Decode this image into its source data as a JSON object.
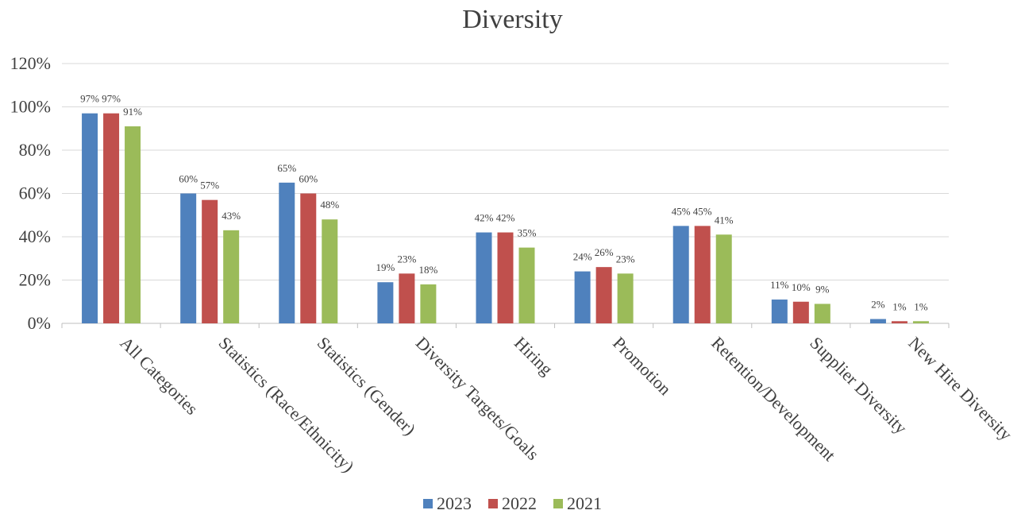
{
  "chart_data": {
    "type": "bar",
    "title": "Diversity",
    "xlabel": "",
    "ylabel": "",
    "ylim": [
      0,
      120
    ],
    "yticks": [
      0,
      20,
      40,
      60,
      80,
      100,
      120
    ],
    "ytick_labels": [
      "0%",
      "20%",
      "40%",
      "60%",
      "80%",
      "100%",
      "120%"
    ],
    "grid": true,
    "legend_position": "bottom",
    "categories": [
      "All Categories",
      "Statistics (Race/Ethnicity)",
      "Statistics (Gender)",
      "Diversity Targets/Goals",
      "Hiring",
      "Promotion",
      "Retention/Development",
      "Supplier Diversity",
      "New Hire Diversity"
    ],
    "series": [
      {
        "name": "2023",
        "color": "#4f81bd",
        "values": [
          97,
          60,
          65,
          19,
          42,
          24,
          45,
          11,
          2
        ],
        "labels": [
          "97%",
          "60%",
          "65%",
          "19%",
          "42%",
          "24%",
          "45%",
          "11%",
          "2%"
        ]
      },
      {
        "name": "2022",
        "color": "#c0504d",
        "values": [
          97,
          57,
          60,
          23,
          42,
          26,
          45,
          10,
          1
        ],
        "labels": [
          "97%",
          "57%",
          "60%",
          "23%",
          "42%",
          "26%",
          "45%",
          "10%",
          "1%"
        ]
      },
      {
        "name": "2021",
        "color": "#9bbb59",
        "values": [
          91,
          43,
          48,
          18,
          35,
          23,
          41,
          9,
          1
        ],
        "labels": [
          "91%",
          "43%",
          "48%",
          "18%",
          "35%",
          "23%",
          "41%",
          "9%",
          "1%"
        ]
      }
    ]
  }
}
